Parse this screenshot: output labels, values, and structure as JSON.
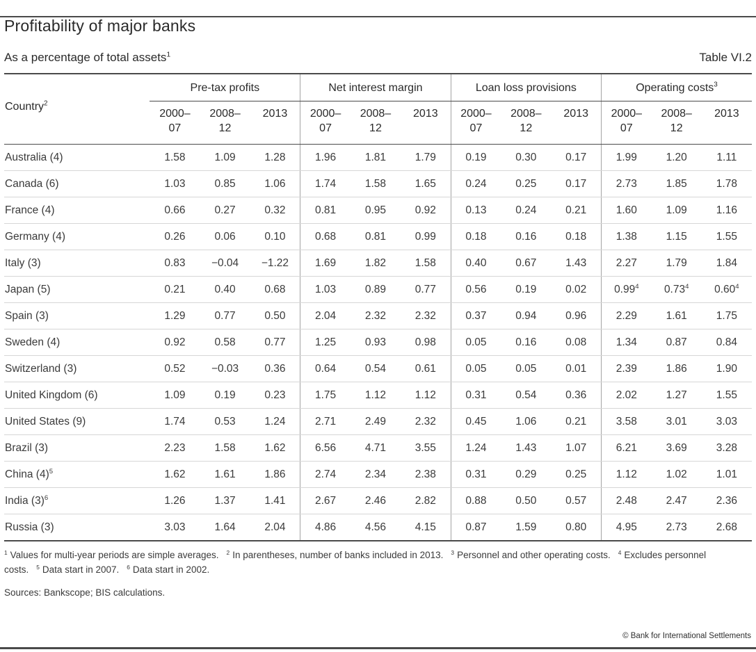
{
  "page": {
    "title": "Profitability of major banks",
    "subtitle": "As a percentage of total assets^1",
    "table_label": "Table VI.2",
    "copyright": "© Bank for International Settlements"
  },
  "colors": {
    "text": "#3a3a3a",
    "title": "#2a2a2a",
    "rule_dark": "#4a4a4a",
    "rule_light": "#d6d6d6",
    "rule_mid": "#a3a3a3"
  },
  "chart_data": {
    "type": "table",
    "title": "Profitability of major banks",
    "subtitle": "As a percentage of total assets",
    "country_header": "Country^2",
    "groups": [
      "Pre-tax profits",
      "Net interest margin",
      "Loan loss provisions",
      "Operating costs^3"
    ],
    "period_columns": [
      [
        "2000–",
        "07"
      ],
      [
        "2008–",
        "12"
      ],
      [
        "2013"
      ]
    ],
    "rows": [
      {
        "country": "Australia (4)",
        "values": [
          [
            "1.58",
            "1.09",
            "1.28"
          ],
          [
            "1.96",
            "1.81",
            "1.79"
          ],
          [
            "0.19",
            "0.30",
            "0.17"
          ],
          [
            "1.99",
            "1.20",
            "1.11"
          ]
        ]
      },
      {
        "country": "Canada (6)",
        "values": [
          [
            "1.03",
            "0.85",
            "1.06"
          ],
          [
            "1.74",
            "1.58",
            "1.65"
          ],
          [
            "0.24",
            "0.25",
            "0.17"
          ],
          [
            "2.73",
            "1.85",
            "1.78"
          ]
        ]
      },
      {
        "country": "France (4)",
        "values": [
          [
            "0.66",
            "0.27",
            "0.32"
          ],
          [
            "0.81",
            "0.95",
            "0.92"
          ],
          [
            "0.13",
            "0.24",
            "0.21"
          ],
          [
            "1.60",
            "1.09",
            "1.16"
          ]
        ]
      },
      {
        "country": "Germany (4)",
        "values": [
          [
            "0.26",
            "0.06",
            "0.10"
          ],
          [
            "0.68",
            "0.81",
            "0.99"
          ],
          [
            "0.18",
            "0.16",
            "0.18"
          ],
          [
            "1.38",
            "1.15",
            "1.55"
          ]
        ]
      },
      {
        "country": "Italy (3)",
        "values": [
          [
            "0.83",
            "−0.04",
            "−1.22"
          ],
          [
            "1.69",
            "1.82",
            "1.58"
          ],
          [
            "0.40",
            "0.67",
            "1.43"
          ],
          [
            "2.27",
            "1.79",
            "1.84"
          ]
        ]
      },
      {
        "country": "Japan (5)",
        "values": [
          [
            "0.21",
            "0.40",
            "0.68"
          ],
          [
            "1.03",
            "0.89",
            "0.77"
          ],
          [
            "0.56",
            "0.19",
            "0.02"
          ],
          [
            "0.99^4",
            "0.73^4",
            "0.60^4"
          ]
        ]
      },
      {
        "country": "Spain (3)",
        "values": [
          [
            "1.29",
            "0.77",
            "0.50"
          ],
          [
            "2.04",
            "2.32",
            "2.32"
          ],
          [
            "0.37",
            "0.94",
            "0.96"
          ],
          [
            "2.29",
            "1.61",
            "1.75"
          ]
        ]
      },
      {
        "country": "Sweden (4)",
        "values": [
          [
            "0.92",
            "0.58",
            "0.77"
          ],
          [
            "1.25",
            "0.93",
            "0.98"
          ],
          [
            "0.05",
            "0.16",
            "0.08"
          ],
          [
            "1.34",
            "0.87",
            "0.84"
          ]
        ]
      },
      {
        "country": "Switzerland (3)",
        "values": [
          [
            "0.52",
            "−0.03",
            "0.36"
          ],
          [
            "0.64",
            "0.54",
            "0.61"
          ],
          [
            "0.05",
            "0.05",
            "0.01"
          ],
          [
            "2.39",
            "1.86",
            "1.90"
          ]
        ]
      },
      {
        "country": "United Kingdom (6)",
        "values": [
          [
            "1.09",
            "0.19",
            "0.23"
          ],
          [
            "1.75",
            "1.12",
            "1.12"
          ],
          [
            "0.31",
            "0.54",
            "0.36"
          ],
          [
            "2.02",
            "1.27",
            "1.55"
          ]
        ]
      },
      {
        "country": "United States (9)",
        "values": [
          [
            "1.74",
            "0.53",
            "1.24"
          ],
          [
            "2.71",
            "2.49",
            "2.32"
          ],
          [
            "0.45",
            "1.06",
            "0.21"
          ],
          [
            "3.58",
            "3.01",
            "3.03"
          ]
        ]
      },
      {
        "country": "Brazil (3)",
        "values": [
          [
            "2.23",
            "1.58",
            "1.62"
          ],
          [
            "6.56",
            "4.71",
            "3.55"
          ],
          [
            "1.24",
            "1.43",
            "1.07"
          ],
          [
            "6.21",
            "3.69",
            "3.28"
          ]
        ]
      },
      {
        "country": "China (4)^5",
        "values": [
          [
            "1.62",
            "1.61",
            "1.86"
          ],
          [
            "2.74",
            "2.34",
            "2.38"
          ],
          [
            "0.31",
            "0.29",
            "0.25"
          ],
          [
            "1.12",
            "1.02",
            "1.01"
          ]
        ]
      },
      {
        "country": "India (3)^6",
        "values": [
          [
            "1.26",
            "1.37",
            "1.41"
          ],
          [
            "2.67",
            "2.46",
            "2.82"
          ],
          [
            "0.88",
            "0.50",
            "0.57"
          ],
          [
            "2.48",
            "2.47",
            "2.36"
          ]
        ]
      },
      {
        "country": "Russia (3)",
        "values": [
          [
            "3.03",
            "1.64",
            "2.04"
          ],
          [
            "4.86",
            "4.56",
            "4.15"
          ],
          [
            "0.87",
            "1.59",
            "0.80"
          ],
          [
            "4.95",
            "2.73",
            "2.68"
          ]
        ]
      }
    ],
    "footnotes": [
      {
        "ref": "1",
        "text": "Values for multi-year periods are simple averages."
      },
      {
        "ref": "2",
        "text": "In parentheses, number of banks included in 2013."
      },
      {
        "ref": "3",
        "text": "Personnel and other operating costs."
      },
      {
        "ref": "4",
        "text": "Excludes personnel costs."
      },
      {
        "ref": "5",
        "text": "Data start in 2007."
      },
      {
        "ref": "6",
        "text": "Data start in 2002."
      }
    ],
    "sources": "Sources: Bankscope; BIS calculations."
  }
}
